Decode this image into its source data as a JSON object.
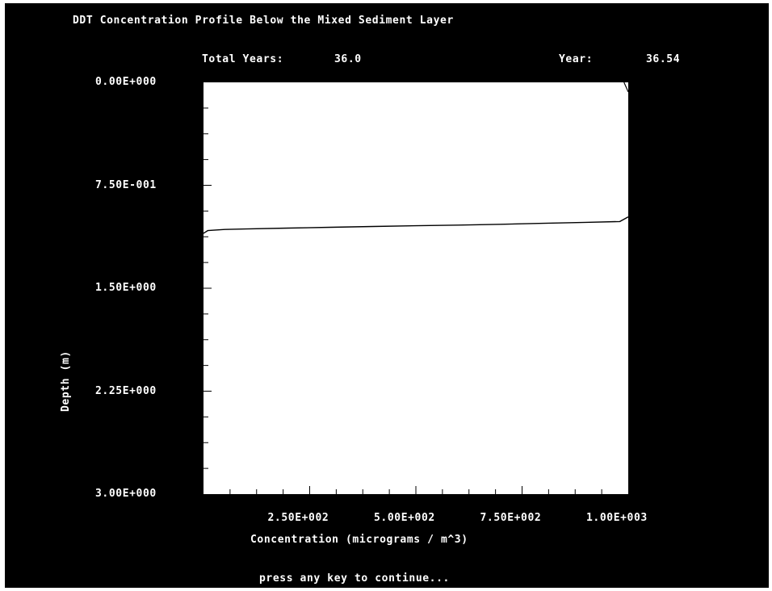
{
  "window": {
    "title": "DDT Concentration Profile Below the Mixed Sediment Layer",
    "total_years_label": "Total Years:",
    "total_years_value": "36.0",
    "year_label": "Year:",
    "year_value": "36.54",
    "prompt": "press any key to continue..."
  },
  "colors": {
    "background": "#000000",
    "plot_area": "#ffffff",
    "text": "#ffffff",
    "line": "#000000"
  },
  "chart_data": {
    "type": "line",
    "title": "DDT Concentration Profile Below the Mixed Sediment Layer",
    "xlabel": "Concentration (micrograms / m^3)",
    "ylabel": "Depth (m)",
    "xlim": [
      0,
      1000
    ],
    "ylim": [
      0,
      3.0
    ],
    "y_inverted": true,
    "x_ticks": [
      250,
      500,
      750,
      1000
    ],
    "x_tick_labels": [
      "2.50E+002",
      "5.00E+002",
      "7.50E+002",
      "1.00E+003"
    ],
    "y_ticks": [
      0,
      0.75,
      1.5,
      2.25,
      3.0
    ],
    "y_tick_labels": [
      "0.00E+000",
      "7.50E-001",
      "1.50E+000",
      "2.25E+000",
      "3.00E+000"
    ],
    "series": [
      {
        "x": [
          0,
          10,
          50,
          100,
          200,
          300,
          400,
          500,
          600,
          700,
          800,
          900,
          980,
          1000
        ],
        "y": [
          1.1,
          1.08,
          1.072,
          1.068,
          1.062,
          1.056,
          1.05,
          1.045,
          1.04,
          1.034,
          1.027,
          1.02,
          1.014,
          0.98
        ]
      }
    ],
    "upper_segment": {
      "x": [
        990,
        1000
      ],
      "y": [
        0.0,
        0.07
      ]
    },
    "grid": false,
    "legend": "none"
  }
}
